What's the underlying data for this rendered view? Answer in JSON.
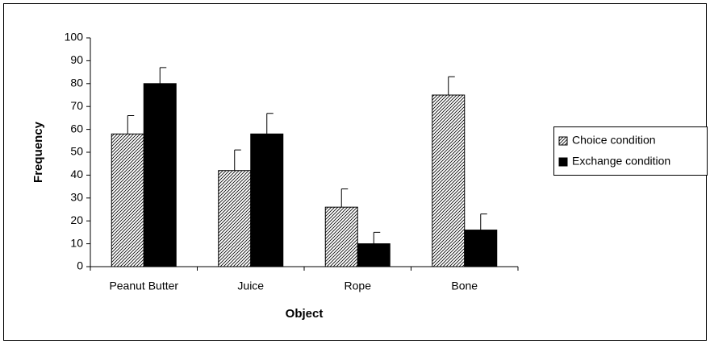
{
  "chart_data": {
    "type": "bar",
    "x_label": "Object",
    "y_label": "Frequency",
    "categories": [
      "Peanut Butter",
      "Juice",
      "Rope",
      "Bone"
    ],
    "series": [
      {
        "name": "Choice condition",
        "color": "#000000",
        "hatch": true,
        "values": [
          58,
          42,
          26,
          75
        ],
        "errors": [
          8,
          9,
          8,
          8
        ]
      },
      {
        "name": "Exchange condition",
        "color": "#000000",
        "hatch": false,
        "values": [
          80,
          58,
          10,
          16
        ],
        "errors": [
          7,
          9,
          5,
          7
        ]
      }
    ],
    "ylim": [
      0,
      100
    ],
    "yticks": [
      0,
      10,
      20,
      30,
      40,
      50,
      60,
      70,
      80,
      90,
      100
    ],
    "grid": false,
    "legend": "right"
  }
}
